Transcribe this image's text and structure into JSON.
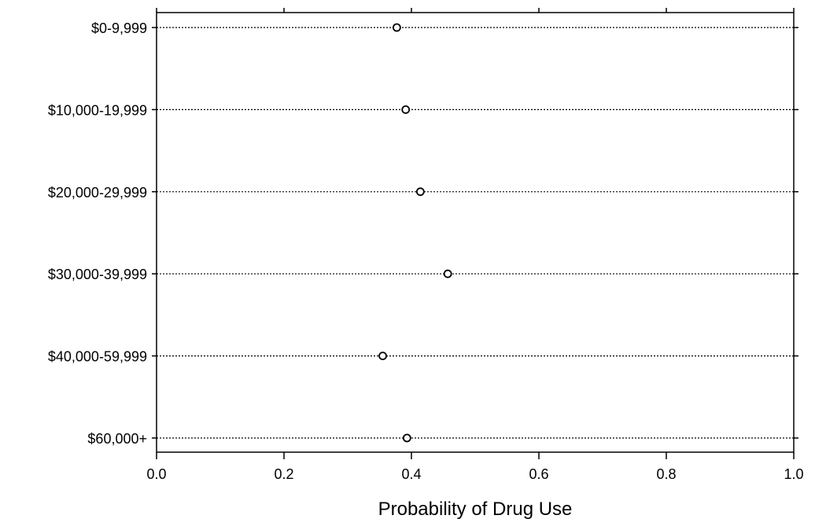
{
  "chart_data": {
    "type": "scatter",
    "title": "",
    "xlabel": "Probability of Drug Use",
    "ylabel": "",
    "xlim": [
      0.0,
      1.0
    ],
    "xticks": [
      "0.0",
      "0.2",
      "0.4",
      "0.6",
      "0.8",
      "1.0"
    ],
    "categories": [
      "$0-9,999",
      "$10,000-19,999",
      "$20,000-29,999",
      "$30,000-39,999",
      "$40,000-59,999",
      "$60,000+"
    ],
    "values": [
      0.377,
      0.391,
      0.414,
      0.457,
      0.355,
      0.393
    ],
    "marker": "open-circle",
    "gridlines": "dotted-horizontal",
    "legend": "none",
    "colors": {
      "ink": "#000000",
      "background": "#ffffff"
    }
  }
}
